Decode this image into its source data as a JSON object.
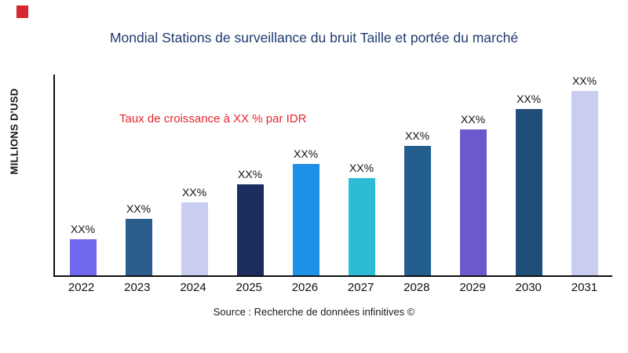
{
  "page": {
    "title": "Mondial Stations de surveillance du bruit Taille et portée du marché",
    "annotation": "Taux de croissance à XX % par IDR",
    "ylabel": "MILLIONS D'USD",
    "source": "Source : Recherche de données infinitives ©",
    "logo_color": "#d7282f",
    "title_color": "#1f3a6e",
    "annotation_color": "#e8262d"
  },
  "chart_data": {
    "type": "bar",
    "title": "Mondial Stations de surveillance du bruit Taille et portée du marché",
    "xlabel": "",
    "ylabel": "MILLIONS D'USD",
    "categories": [
      "2022",
      "2023",
      "2024",
      "2025",
      "2026",
      "2027",
      "2028",
      "2029",
      "2030",
      "2031"
    ],
    "values": [
      18,
      28,
      36,
      45,
      55,
      48,
      64,
      72,
      82,
      91
    ],
    "ylim": [
      0,
      100
    ],
    "bar_labels": [
      "XX%",
      "XX%",
      "XX%",
      "XX%",
      "XX%",
      "XX%",
      "XX%",
      "XX%",
      "XX%",
      "XX%"
    ],
    "bar_colors": [
      "#6f68ee",
      "#2b5d8c",
      "#c9cdf2",
      "#1b2c5e",
      "#1e90e8",
      "#2cbcd4",
      "#235e8e",
      "#6a5acd",
      "#1f4e79",
      "#c9cdf2"
    ],
    "grid": false,
    "legend": false,
    "annotations": [
      "Taux de croissance à XX % par IDR"
    ]
  }
}
